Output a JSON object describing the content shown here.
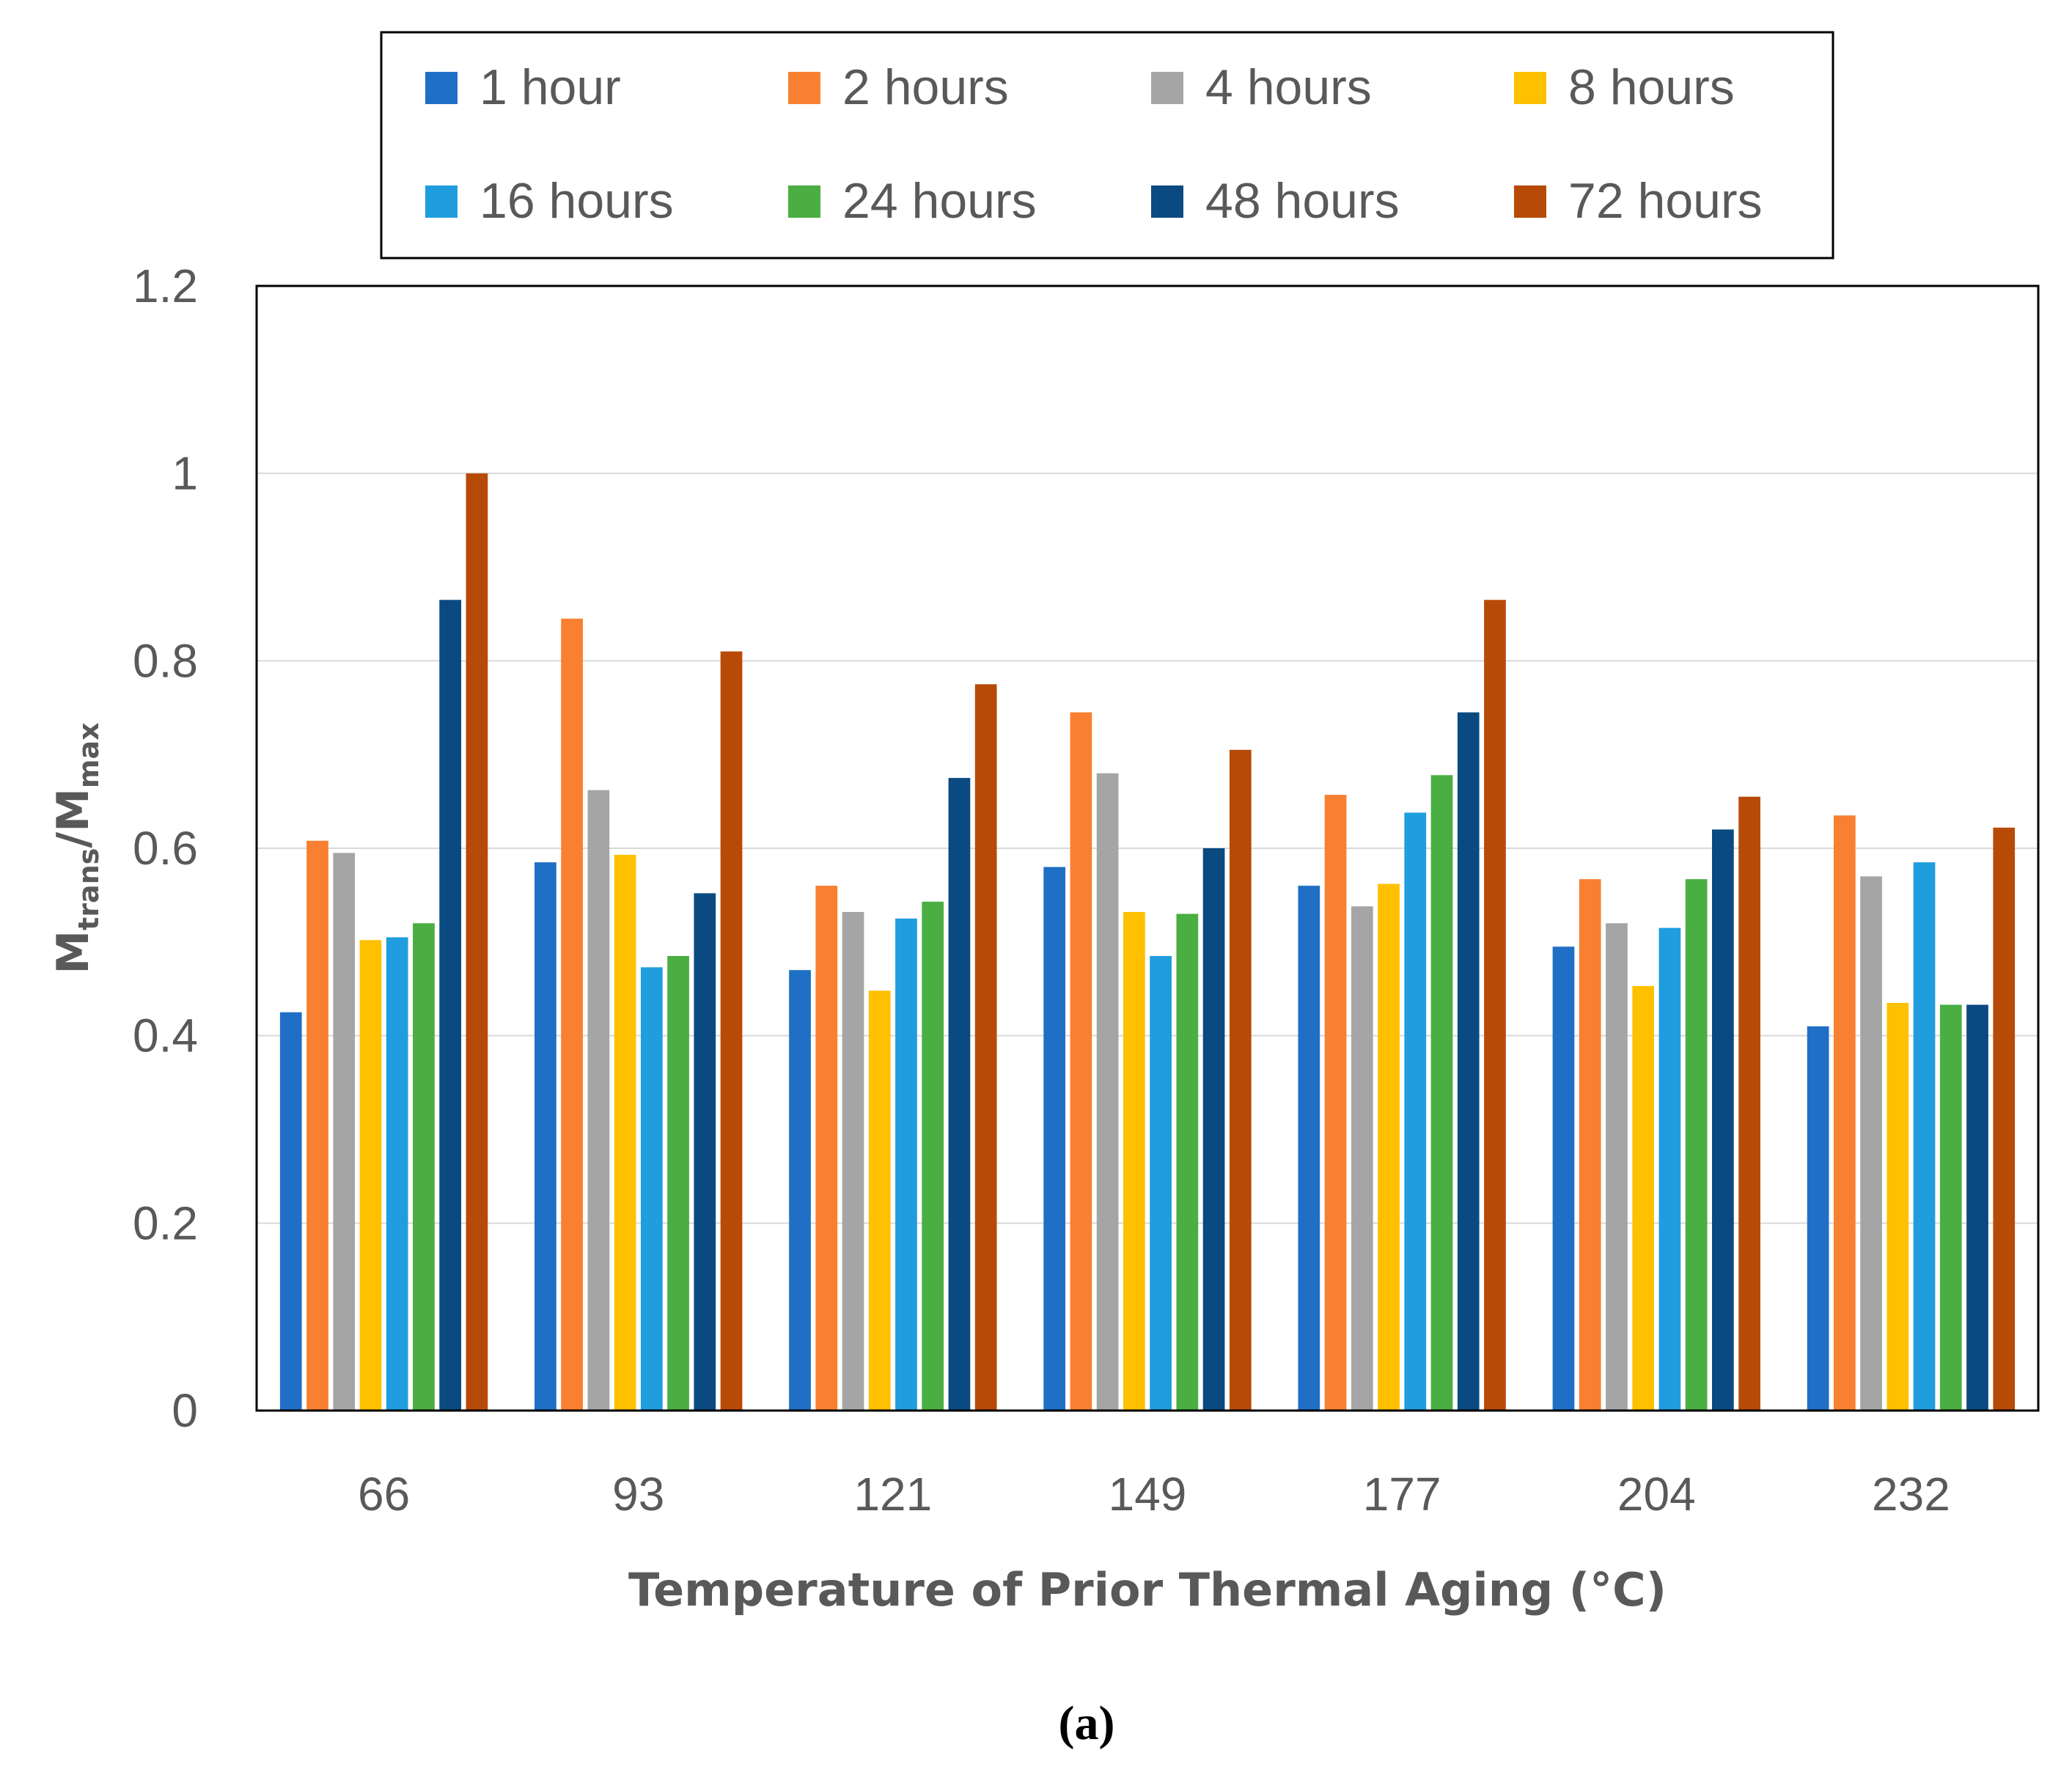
{
  "chart_data": {
    "type": "bar",
    "title": "",
    "ylabel": {
      "main": "M",
      "sub1": "trans",
      "sep": "/M",
      "sub2": "max"
    },
    "xlabel": "Temperature of Prior Thermal Aging (°C)",
    "caption": "(a)",
    "ylim": [
      0,
      1.2
    ],
    "yticks": [
      {
        "value": 0,
        "label": "0"
      },
      {
        "value": 0.2,
        "label": "0.2"
      },
      {
        "value": 0.4,
        "label": "0.4"
      },
      {
        "value": 0.6,
        "label": "0.6"
      },
      {
        "value": 0.8,
        "label": "0.8"
      },
      {
        "value": 1.0,
        "label": "1"
      },
      {
        "value": 1.2,
        "label": "1.2"
      }
    ],
    "grid": true,
    "legend_position": "top",
    "categories": [
      "66",
      "93",
      "121",
      "149",
      "177",
      "204",
      "232"
    ],
    "series": [
      {
        "name": "1 hour",
        "color": "#1f6fc6",
        "values": [
          0.425,
          0.585,
          0.47,
          0.58,
          0.56,
          0.495,
          0.41
        ]
      },
      {
        "name": "2 hours",
        "color": "#f98030",
        "values": [
          0.608,
          0.845,
          0.56,
          0.745,
          0.657,
          0.567,
          0.635
        ]
      },
      {
        "name": "4 hours",
        "color": "#a5a5a5",
        "values": [
          0.595,
          0.662,
          0.532,
          0.68,
          0.538,
          0.52,
          0.57
        ]
      },
      {
        "name": "8 hours",
        "color": "#ffc000",
        "values": [
          0.502,
          0.593,
          0.448,
          0.532,
          0.562,
          0.453,
          0.435
        ]
      },
      {
        "name": "16 hours",
        "color": "#209ddf",
        "values": [
          0.505,
          0.473,
          0.525,
          0.485,
          0.638,
          0.515,
          0.585
        ]
      },
      {
        "name": "24 hours",
        "color": "#4aae42",
        "values": [
          0.52,
          0.485,
          0.543,
          0.53,
          0.678,
          0.567,
          0.433
        ]
      },
      {
        "name": "48 hours",
        "color": "#0b4a80",
        "values": [
          0.865,
          0.552,
          0.675,
          0.6,
          0.745,
          0.62,
          0.433
        ]
      },
      {
        "name": "72 hours",
        "color": "#b84a08",
        "values": [
          1.0,
          0.81,
          0.775,
          0.705,
          0.865,
          0.655,
          0.622
        ]
      }
    ]
  }
}
